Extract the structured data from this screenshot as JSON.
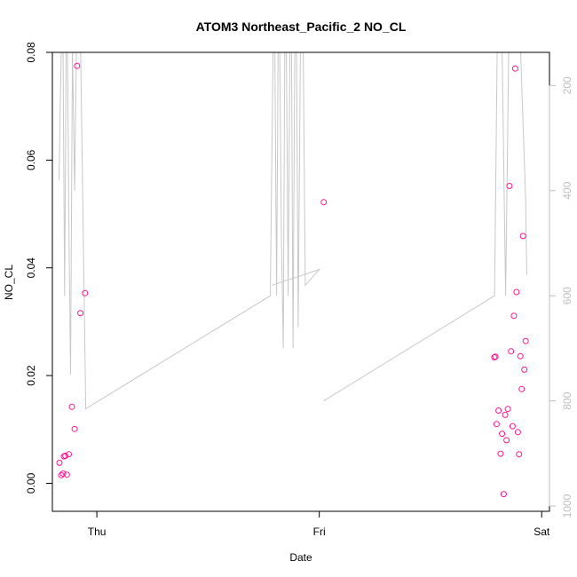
{
  "chart_data": {
    "type": "scatter",
    "title": "ATOM3 Northeast_Pacific_2 NO_CL",
    "xlabel": "Date",
    "ylabel": "NO_CL",
    "x_ticks": [
      {
        "label": "Thu",
        "t": 0
      },
      {
        "label": "Fri",
        "t": 1
      },
      {
        "label": "Sat",
        "t": 2
      }
    ],
    "xlim": [
      -0.2,
      2.035
    ],
    "ylim": [
      -0.0052,
      0.08
    ],
    "y_ticks": [
      0.0,
      0.02,
      0.04,
      0.06,
      0.08
    ],
    "y_tick_labels": [
      "0.00",
      "0.02",
      "0.04",
      "0.06",
      "0.08"
    ],
    "right_axis": {
      "label": "",
      "ticks": [
        200,
        400,
        600,
        800,
        1000
      ],
      "tick_labels": [
        "200",
        "400",
        "600",
        "800",
        "1000"
      ],
      "lim": [
        1010,
        137
      ],
      "color": "#bebebe"
    },
    "colors": {
      "points": "#ff1493",
      "line": "#c8c8c8",
      "axis": "#000000"
    },
    "series": [
      {
        "name": "NO_CL",
        "type": "scatter",
        "x": [
          -0.168,
          -0.16,
          -0.152,
          -0.148,
          -0.142,
          -0.135,
          -0.126,
          -0.112,
          -0.1,
          -0.089,
          -0.074,
          -0.053,
          1.02,
          1.787,
          1.792,
          1.797,
          1.806,
          1.815,
          1.822,
          1.829,
          1.836,
          1.842,
          1.848,
          1.855,
          1.862,
          1.869,
          1.875,
          1.881,
          1.887,
          1.893,
          1.898,
          1.904,
          1.91,
          1.916,
          1.922,
          1.928
        ],
        "y": [
          0.0038,
          0.0015,
          0.0018,
          0.005,
          0.0051,
          0.0016,
          0.0054,
          0.0142,
          0.0101,
          0.0775,
          0.0316,
          0.0353,
          0.0522,
          0.0234,
          0.0235,
          0.011,
          0.0135,
          0.0055,
          0.0092,
          -0.002,
          0.0127,
          0.008,
          0.0138,
          0.0552,
          0.0245,
          0.0106,
          0.0311,
          0.077,
          0.0355,
          0.0095,
          0.0054,
          0.0236,
          0.0175,
          0.0459,
          0.0211,
          0.0264
        ]
      },
      {
        "name": "altitude",
        "type": "line",
        "axis": "right",
        "x": [
          -0.17,
          -0.16,
          -0.152,
          -0.145,
          -0.138,
          -0.132,
          -0.125,
          -0.118,
          -0.11,
          -0.1,
          -0.092,
          -0.085,
          -0.073,
          -0.05,
          0.78,
          0.792,
          0.8,
          0.808,
          0.815,
          0.822,
          0.83,
          0.838,
          0.845,
          0.852,
          0.86,
          0.868,
          0.875,
          0.882,
          0.89,
          0.898,
          0.905,
          0.915,
          0.928,
          0.937,
          1.0,
          0.788
        ],
        "y": [
          380,
          130,
          130,
          600,
          130,
          130,
          500,
          750,
          130,
          400,
          130,
          130,
          130,
          815,
          600,
          130,
          130,
          600,
          130,
          130,
          500,
          700,
          130,
          130,
          600,
          130,
          130,
          700,
          130,
          130,
          660,
          130,
          130,
          580,
          550,
          580
        ]
      },
      {
        "name": "altitude-tail",
        "type": "line",
        "axis": "right",
        "x": [
          1.02,
          1.788,
          1.8,
          1.822,
          1.838,
          1.852,
          1.871,
          1.886,
          1.905,
          1.928,
          1.933
        ],
        "y": [
          800,
          600,
          130,
          130,
          600,
          130,
          130,
          130,
          130,
          420,
          560
        ]
      }
    ]
  }
}
